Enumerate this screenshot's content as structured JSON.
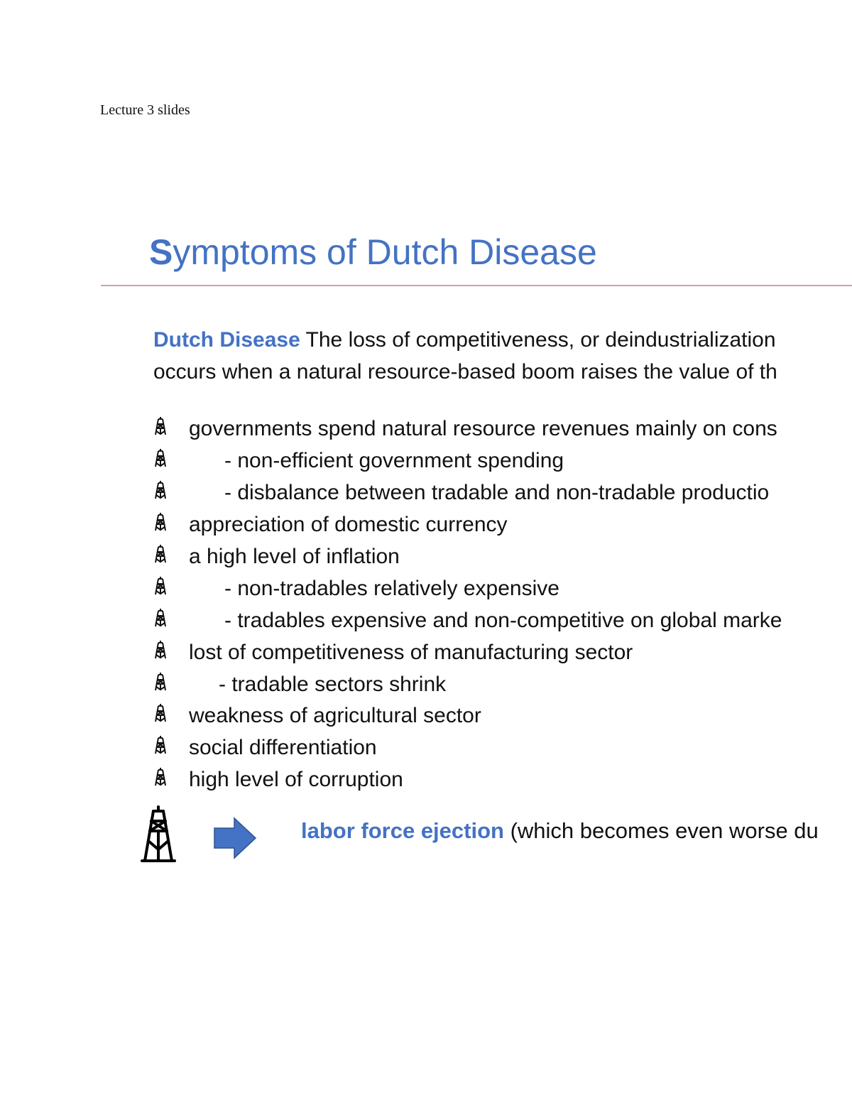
{
  "header": "Lecture 3 slides",
  "title": {
    "first": "S",
    "rest": "ymptoms of Dutch Disease"
  },
  "definition": {
    "term": "Dutch Disease",
    "line1": " The loss of competitiveness, or deindustrialization",
    "line2": "occurs when a natural resource-based boom raises the value of th"
  },
  "bullet_icon": "oil-rig-icon",
  "items": [
    {
      "text": "governments spend natural resource revenues mainly on cons",
      "indent": 0
    },
    {
      "text": "- non-efficient government spending",
      "indent": 1
    },
    {
      "text": "- disbalance between tradable and non-tradable productio",
      "indent": 1
    },
    {
      "text": "appreciation of domestic currency",
      "indent": 0
    },
    {
      "text": "a high level of inflation",
      "indent": 0
    },
    {
      "text": "- non-tradables relatively expensive",
      "indent": 1
    },
    {
      "text": "- tradables expensive and non-competitive on global marke",
      "indent": 1
    },
    {
      "text": "lost of competitiveness of manufacturing sector",
      "indent": 0
    },
    {
      "text": "- tradable sectors shrink",
      "indent": 2
    },
    {
      "text": "weakness of agricultural sector",
      "indent": 0
    },
    {
      "text": "social differentiation",
      "indent": 0
    },
    {
      "text": "high level of corruption",
      "indent": 0
    }
  ],
  "conclusion": {
    "term": "labor force ejection",
    "rest": " (which becomes even worse du"
  },
  "colors": {
    "accent": "#4472c4",
    "rule": "#c9a0b8",
    "arrow": "#4472c4"
  }
}
